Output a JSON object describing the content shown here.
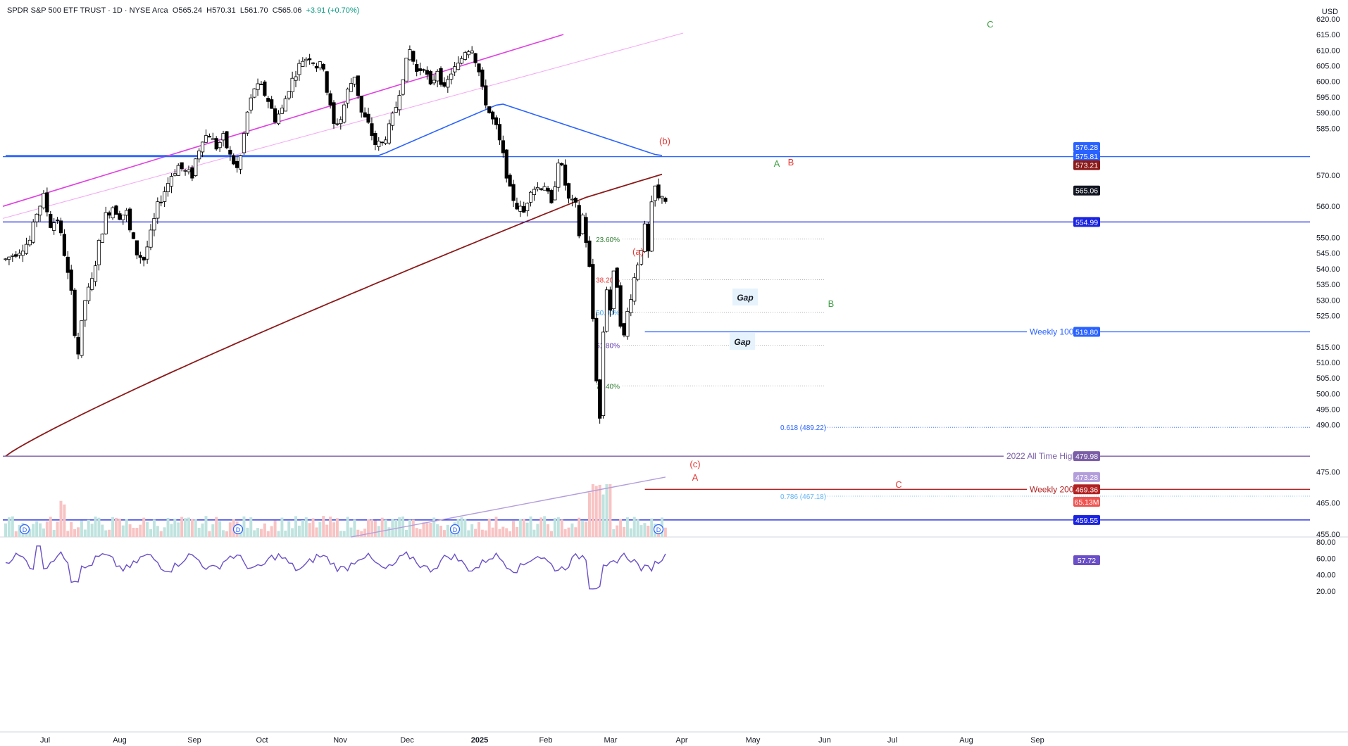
{
  "header": {
    "symbol_name": "SPDR S&P 500 ETF TRUST",
    "interval": "1D",
    "exchange": "NYSE Arca",
    "open": "O565.24",
    "high": "H570.31",
    "low": "L561.70",
    "close": "C565.06",
    "change": "+3.91 (+0.70%)",
    "currency": "USD"
  },
  "colors": {
    "bull": "#ffffff",
    "bear": "#000000",
    "ma_blue": "#2962ff",
    "ma_red": "#8b1a1a",
    "channel": "#e040e0",
    "rsi": "#6a4fc6",
    "vol_up": "#bfe3df",
    "vol_down": "#f8c3c3"
  },
  "chart_data": {
    "type": "candlestick",
    "y_axis": {
      "min": 455,
      "max": 620,
      "step": 5
    },
    "x_ticks": [
      "Jul",
      "Aug",
      "Sep",
      "Oct",
      "Nov",
      "Dec",
      "2025",
      "Feb",
      "Mar",
      "Apr",
      "May",
      "Jun",
      "Jul",
      "Aug",
      "Sep"
    ],
    "price_labels": [
      {
        "value": 576.28,
        "text": "576.28",
        "color": "#2962ff"
      },
      {
        "value": 575.81,
        "text": "575.81",
        "color": "#2962ff"
      },
      {
        "value": 573.21,
        "text": "573.21",
        "color": "#8b1a1a"
      },
      {
        "value": 565.06,
        "text": "565.06",
        "color": "#131722"
      },
      {
        "value": 554.99,
        "text": "554.99",
        "color": "#1a23e0"
      },
      {
        "value": 519.8,
        "text": "519.80",
        "color": "#2962ff"
      },
      {
        "value": 479.98,
        "text": "479.98",
        "color": "#7b5ea7"
      },
      {
        "value": 473.28,
        "text": "473.28",
        "color": "#b39ddb"
      },
      {
        "value": 469.36,
        "text": "469.36",
        "color": "#b22222"
      },
      {
        "value": 65.13,
        "text": "65.13M",
        "color": "#ef5350",
        "volume": true
      },
      {
        "value": 459.55,
        "text": "459.55",
        "color": "#1a23e0"
      }
    ],
    "hlines": [
      {
        "value": 575.9,
        "color": "#2962ff",
        "from": "start"
      },
      {
        "value": 554.99,
        "color": "#1a23e0",
        "from": "start"
      },
      {
        "value": 479.98,
        "color": "#7b5ea7",
        "from": "start",
        "label": "2022 All Time High"
      },
      {
        "value": 519.8,
        "color": "#2962ff",
        "from": "may",
        "label": "Weekly 100"
      },
      {
        "value": 469.36,
        "color": "#b22222",
        "from": "may",
        "label": "Weekly 200"
      },
      {
        "value": 459.55,
        "color": "#1a23e0",
        "from": "start"
      }
    ],
    "fib_levels": [
      {
        "ratio": "23.60%",
        "value": 549.5,
        "color": "#2e7d32"
      },
      {
        "ratio": "38.20%",
        "value": 536.5,
        "color": "#e53935"
      },
      {
        "ratio": "50.00%",
        "value": 526.0,
        "color": "#42a5f5"
      },
      {
        "ratio": "61.80%",
        "value": 515.5,
        "color": "#5e35b1"
      },
      {
        "ratio": "76.40%",
        "value": 502.5,
        "color": "#2e7d32"
      },
      {
        "ratio": "0.618 (489.22)",
        "value": 489.22,
        "color": "#2962ff"
      },
      {
        "ratio": "0.786 (467.18)",
        "value": 467.18,
        "color": "#64b5f6"
      }
    ],
    "wave_labels": [
      {
        "text": "(b)",
        "color": "#e53935"
      },
      {
        "text": "(a)",
        "color": "#e53935"
      },
      {
        "text": "(c)",
        "color": "#e53935"
      },
      {
        "text": "A",
        "color": "#e53935"
      },
      {
        "text": "A",
        "color": "#43a047"
      },
      {
        "text": "B",
        "color": "#e53935"
      },
      {
        "text": "B",
        "color": "#43a047"
      },
      {
        "text": "C",
        "color": "#43a047"
      },
      {
        "text": "C",
        "color": "#e53935"
      }
    ],
    "gap_labels": [
      "Gap",
      "Gap"
    ],
    "dividend_marker": "D",
    "rsi": {
      "axis": [
        "80.00",
        "60.00",
        "40.00",
        "20.00"
      ],
      "last": "57.72"
    }
  }
}
